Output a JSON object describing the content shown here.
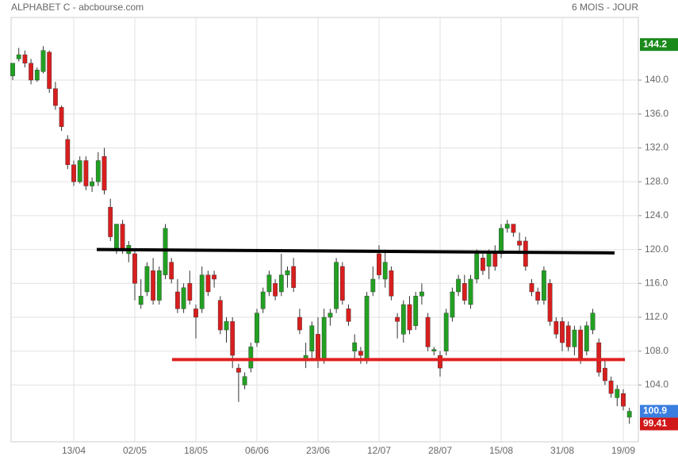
{
  "chart_data": {
    "type": "candlestick",
    "title": "ALPHABET C - abcbourse.com",
    "subtitle": "6 MOIS - JOUR",
    "categories": [
      null,
      null,
      null,
      null,
      null,
      null,
      null,
      null,
      null,
      null,
      "13/04",
      null,
      null,
      null,
      null,
      null,
      null,
      null,
      null,
      null,
      "02/05",
      null,
      null,
      null,
      null,
      null,
      null,
      null,
      null,
      null,
      "18/05",
      null,
      null,
      null,
      null,
      null,
      null,
      null,
      null,
      null,
      "06/06",
      null,
      null,
      null,
      null,
      null,
      null,
      null,
      null,
      null,
      "23/06",
      null,
      null,
      null,
      null,
      null,
      null,
      null,
      null,
      null,
      "12/07",
      null,
      null,
      null,
      null,
      null,
      null,
      null,
      null,
      null,
      "28/07",
      null,
      null,
      null,
      null,
      null,
      null,
      null,
      null,
      null,
      "15/08",
      null,
      null,
      null,
      null,
      null,
      null,
      null,
      null,
      null,
      "31/08",
      null,
      null,
      null,
      null,
      null,
      null,
      null,
      null,
      null,
      "19/09",
      null
    ],
    "ohlc": [
      [
        140.5,
        142,
        140,
        142
      ],
      [
        142.5,
        143.8,
        142.2,
        143
      ],
      [
        143,
        143.5,
        141.5,
        142
      ],
      [
        142,
        142.5,
        139.5,
        140
      ],
      [
        140,
        141.5,
        139.8,
        141.2
      ],
      [
        141,
        144,
        140.8,
        143.5
      ],
      [
        143.3,
        143.5,
        138.5,
        139
      ],
      [
        139,
        139.8,
        136.5,
        137
      ],
      [
        136.8,
        137,
        134,
        134.5
      ],
      [
        133,
        133.5,
        129.5,
        130
      ],
      [
        130,
        130.5,
        127.5,
        128
      ],
      [
        128,
        131,
        127.8,
        130.5
      ],
      [
        130.5,
        131,
        127,
        127.5
      ],
      [
        127.5,
        128.5,
        126.8,
        128
      ],
      [
        128,
        131.5,
        127.5,
        130.5
      ],
      [
        131,
        132,
        126.5,
        127
      ],
      [
        125,
        126,
        121,
        121.5
      ],
      [
        120,
        123,
        119.5,
        123
      ],
      [
        123,
        123.5,
        119.5,
        120
      ],
      [
        119.5,
        121,
        118.5,
        120.5
      ],
      [
        119.5,
        120,
        114,
        116
      ],
      [
        113.5,
        116.5,
        113,
        114.5
      ],
      [
        115,
        118.5,
        114.5,
        118
      ],
      [
        117.5,
        119,
        113.5,
        114
      ],
      [
        114,
        118,
        113.5,
        117.5
      ],
      [
        117,
        123,
        116.5,
        122.5
      ],
      [
        118.5,
        119,
        116,
        116.5
      ],
      [
        115,
        116.5,
        112.5,
        113
      ],
      [
        113,
        116,
        112.5,
        115.5
      ],
      [
        116,
        117.5,
        113.5,
        114
      ],
      [
        113,
        113.5,
        109.5,
        112
      ],
      [
        113,
        118,
        112.5,
        117
      ],
      [
        117,
        117.5,
        114.5,
        115
      ],
      [
        117,
        117.5,
        115.5,
        116.5
      ],
      [
        114,
        114.5,
        110,
        110.5
      ],
      [
        110.5,
        112,
        109,
        111.5
      ],
      [
        111.5,
        112,
        106,
        107.5
      ],
      [
        106,
        106.5,
        102,
        105.5
      ],
      [
        104,
        105.5,
        103.5,
        105
      ],
      [
        106,
        109,
        105.5,
        108.5
      ],
      [
        109,
        113,
        108.5,
        112.5
      ],
      [
        113,
        115.5,
        112.5,
        115
      ],
      [
        115,
        117.5,
        114.5,
        117
      ],
      [
        116,
        116.5,
        114,
        114.5
      ],
      [
        115,
        119.5,
        114.5,
        117
      ],
      [
        117,
        118,
        115.5,
        117.5
      ],
      [
        118,
        119,
        115,
        115.5
      ],
      [
        112,
        113,
        110,
        110.5
      ],
      [
        107,
        109,
        106,
        107.5
      ],
      [
        108,
        111.5,
        107,
        111
      ],
      [
        110,
        112,
        106,
        107
      ],
      [
        107,
        113,
        106.5,
        112
      ],
      [
        112,
        113,
        111,
        112.5
      ],
      [
        113,
        119,
        112.5,
        118.5
      ],
      [
        118,
        118.5,
        113.5,
        114
      ],
      [
        113,
        113.5,
        111,
        111.5
      ],
      [
        108,
        110,
        107,
        109
      ],
      [
        108,
        108.5,
        106.5,
        107.5
      ],
      [
        107,
        115,
        106.5,
        114.5
      ],
      [
        115,
        118,
        114.5,
        116.5
      ],
      [
        119.5,
        120.5,
        116.5,
        117
      ],
      [
        116.5,
        120,
        115.5,
        118.5
      ],
      [
        117.5,
        118,
        114,
        114.5
      ],
      [
        112,
        112.5,
        109.5,
        111.5
      ],
      [
        110,
        114,
        109,
        113.5
      ],
      [
        113.5,
        114.5,
        110,
        110.5
      ],
      [
        111,
        115,
        110.5,
        114.5
      ],
      [
        114.5,
        116,
        113.5,
        115
      ],
      [
        112,
        112.5,
        108,
        108.5
      ],
      [
        108,
        108.5,
        107.5,
        108.2
      ],
      [
        107.5,
        108,
        105,
        106
      ],
      [
        108,
        113,
        107.5,
        112.5
      ],
      [
        112,
        115.5,
        111.5,
        115
      ],
      [
        115,
        117,
        114.5,
        116.5
      ],
      [
        116,
        117,
        113.5,
        114
      ],
      [
        113.5,
        117,
        113,
        116.5
      ],
      [
        116.5,
        120,
        116,
        119.5
      ],
      [
        119,
        119.5,
        117,
        117.5
      ],
      [
        118,
        120,
        116.5,
        119.5
      ],
      [
        119.5,
        120.5,
        117.5,
        118
      ],
      [
        119.5,
        123,
        119,
        122.5
      ],
      [
        122.5,
        123.5,
        122,
        123
      ],
      [
        123,
        123,
        121.5,
        122
      ],
      [
        121,
        122,
        119.5,
        120.5
      ],
      [
        121,
        121.5,
        117.5,
        118
      ],
      [
        116,
        116.5,
        114.5,
        115
      ],
      [
        115,
        115.5,
        113.5,
        114
      ],
      [
        114,
        118,
        113.5,
        117.5
      ],
      [
        116,
        116.5,
        111,
        111.5
      ],
      [
        111.5,
        112,
        109.5,
        110
      ],
      [
        111.5,
        112,
        108,
        109
      ],
      [
        111,
        111.5,
        108,
        108.5
      ],
      [
        108.5,
        111,
        107.5,
        110.5
      ],
      [
        110.5,
        111,
        106.5,
        107
      ],
      [
        108,
        111.5,
        107.5,
        111
      ],
      [
        110.5,
        113,
        110,
        112.5
      ],
      [
        109,
        109.5,
        105,
        105.5
      ],
      [
        106,
        107,
        104,
        104.5
      ],
      [
        104.5,
        105,
        102.5,
        103
      ],
      [
        102.5,
        104,
        101.5,
        103.5
      ],
      [
        103,
        103.5,
        101,
        101.5
      ],
      [
        100.2,
        101.3,
        99.41,
        100.9
      ]
    ],
    "up_color": "#22a022",
    "down_color": "#d81e1e",
    "ylim": [
      97.3,
      147.4
    ],
    "yticks": [
      {
        "value": 104,
        "label": "104.0"
      },
      {
        "value": 108,
        "label": "108.0"
      },
      {
        "value": 112,
        "label": "112.0"
      },
      {
        "value": 116,
        "label": "116.0"
      },
      {
        "value": 120,
        "label": "120.0"
      },
      {
        "value": 124,
        "label": "124.0"
      },
      {
        "value": 128,
        "label": "128.0"
      },
      {
        "value": 132,
        "label": "132.0"
      },
      {
        "value": 136,
        "label": "136.0"
      },
      {
        "value": 140,
        "label": "140.0"
      }
    ],
    "grid": true,
    "trend_lines": [
      {
        "color": "#000000",
        "start": 120.0,
        "end": 119.6
      },
      {
        "color": "#e02020",
        "start": 107.0,
        "end": 107.0
      }
    ],
    "price_labels": [
      {
        "value": 144.2,
        "color": "#1a8a1a"
      },
      {
        "value": 100.9,
        "color": "#3a7ee0"
      },
      {
        "value": 99.41,
        "color": "#d01818"
      }
    ]
  }
}
